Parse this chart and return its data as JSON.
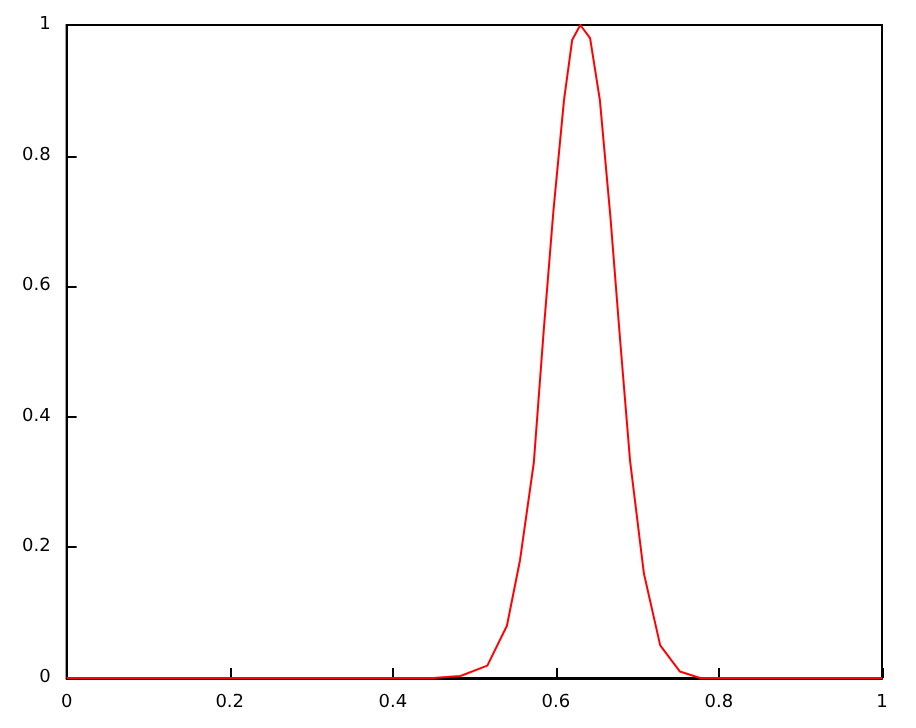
{
  "chart_data": {
    "type": "line",
    "xlim": [
      0,
      1
    ],
    "ylim": [
      0,
      1
    ],
    "xticks": [
      0,
      0.2,
      0.4,
      0.6,
      0.8,
      1
    ],
    "yticks": [
      0,
      0.2,
      0.4,
      0.6,
      0.8,
      1
    ],
    "grid": false,
    "marker": "none",
    "line_style": "solid",
    "series": [
      {
        "color": "#ff0000",
        "x": [
          0,
          0.45,
          0.483,
          0.516,
          0.54,
          0.556,
          0.573,
          0.585,
          0.597,
          0.61,
          0.62,
          0.63,
          0.642,
          0.654,
          0.667,
          0.679,
          0.691,
          0.708,
          0.728,
          0.752,
          0.777,
          0.8,
          1
        ],
        "values": [
          0,
          0,
          0.003,
          0.019,
          0.08,
          0.18,
          0.33,
          0.53,
          0.715,
          0.885,
          0.977,
          1,
          0.98,
          0.885,
          0.705,
          0.515,
          0.333,
          0.16,
          0.05,
          0.01,
          0,
          0,
          0
        ]
      }
    ]
  }
}
